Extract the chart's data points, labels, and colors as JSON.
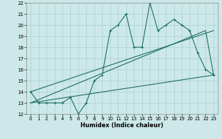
{
  "xlabel": "Humidex (Indice chaleur)",
  "xlim": [
    -0.5,
    23.5
  ],
  "ylim": [
    12,
    22
  ],
  "xticks": [
    0,
    1,
    2,
    3,
    4,
    5,
    6,
    7,
    8,
    9,
    10,
    11,
    12,
    13,
    14,
    15,
    16,
    17,
    18,
    19,
    20,
    21,
    22,
    23
  ],
  "yticks": [
    12,
    13,
    14,
    15,
    16,
    17,
    18,
    19,
    20,
    21,
    22
  ],
  "bg_color": "#cce8e8",
  "line_color": "#1a6b60",
  "grid_color": "#aad0d0",
  "series_jagged": {
    "x": [
      0,
      1,
      2,
      3,
      4,
      5,
      6,
      7,
      8,
      9,
      10,
      11,
      12,
      13,
      14,
      15,
      16,
      17,
      18,
      19,
      20,
      21,
      22,
      23
    ],
    "y": [
      14,
      13,
      13,
      13,
      13,
      13.5,
      12,
      13,
      15,
      15.5,
      19.5,
      20,
      21,
      18,
      18,
      22,
      19.5,
      20,
      20.5,
      20,
      19.5,
      17.5,
      16,
      15.5
    ]
  },
  "series_upper_trend": {
    "x": [
      0,
      23
    ],
    "y": [
      14,
      19.5
    ]
  },
  "series_lower_trend": {
    "x": [
      0,
      22,
      23
    ],
    "y": [
      13,
      19.5,
      15.5
    ]
  },
  "series_bottom_trend": {
    "x": [
      0,
      23
    ],
    "y": [
      13,
      15.5
    ]
  }
}
